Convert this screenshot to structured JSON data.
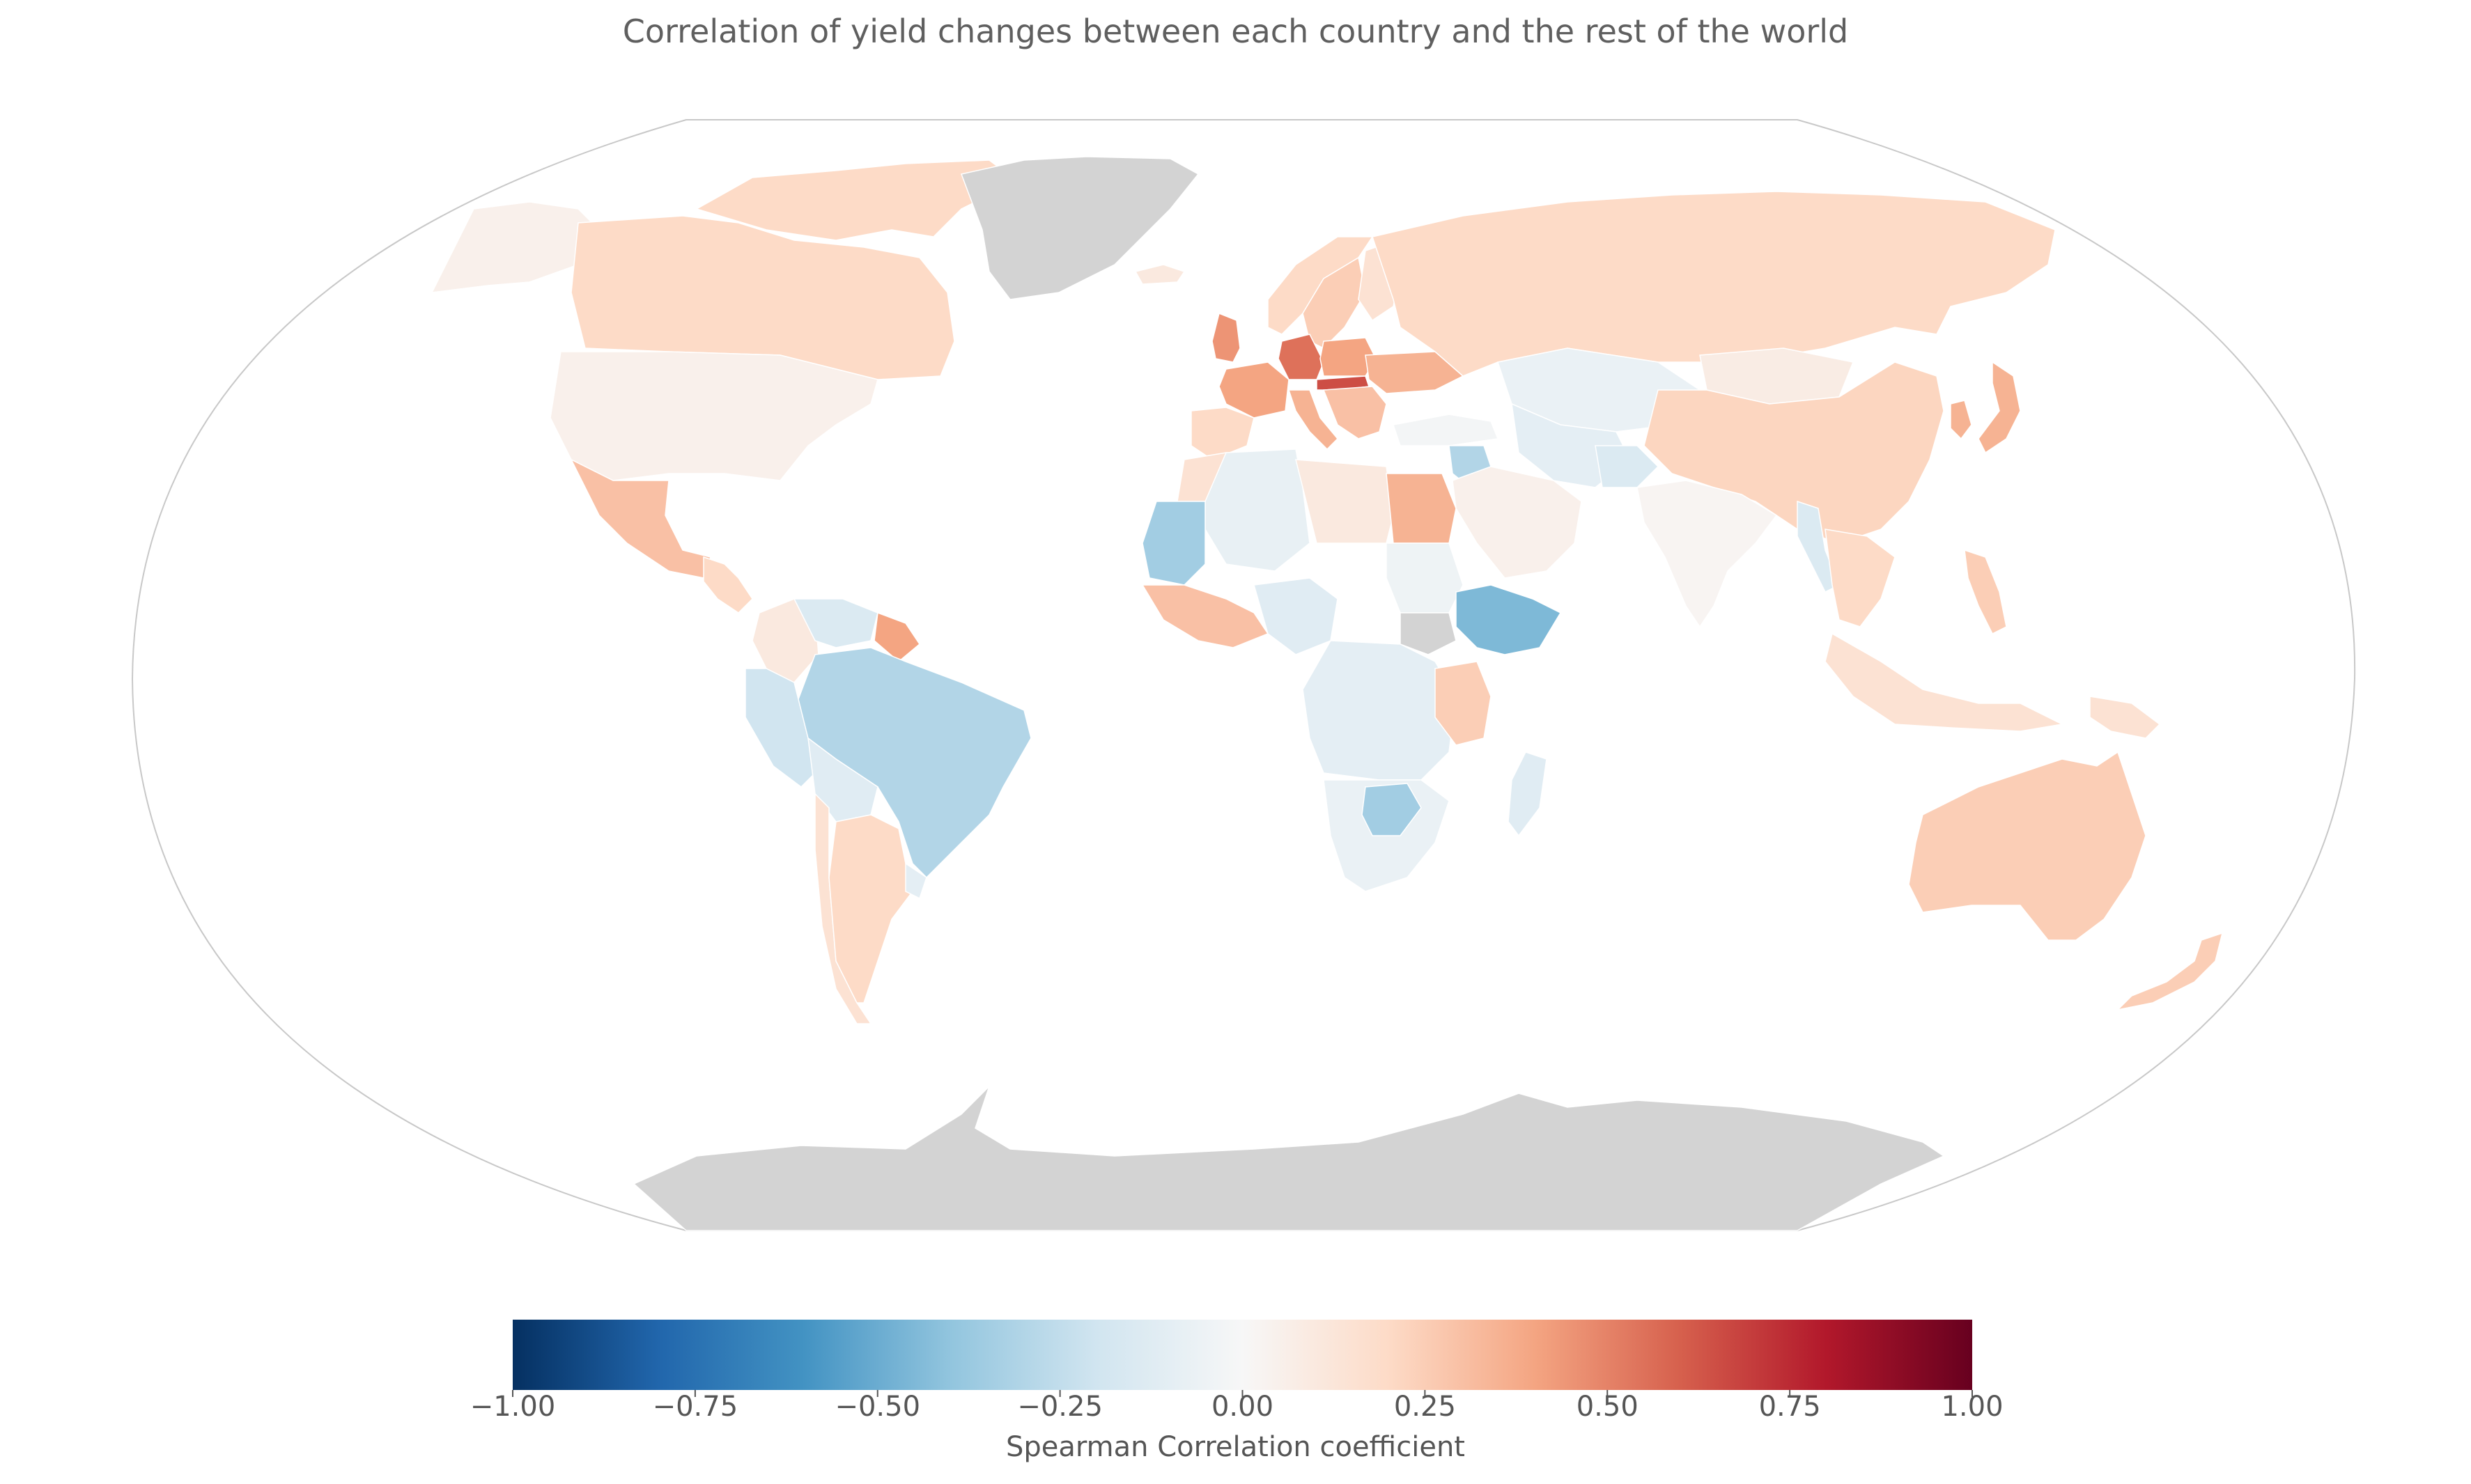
{
  "title": "Correlation of yield changes between each country and the rest of the world",
  "colorbar": {
    "label": "Spearman Correlation coefficient",
    "ticks": [
      "−1.00",
      "−0.75",
      "−0.50",
      "−0.25",
      "0.00",
      "0.25",
      "0.50",
      "0.75",
      "1.00"
    ],
    "range": [
      -1.0,
      1.0
    ],
    "colormap": "RdBu_r",
    "colors": [
      "#053061",
      "#2166ac",
      "#4393c3",
      "#92c5de",
      "#d1e5f0",
      "#f7f7f7",
      "#fddbc7",
      "#f4a582",
      "#d6604d",
      "#b2182b",
      "#67001f"
    ]
  },
  "no_data_color": "#d3d3d3",
  "projection": "Winkel Tripel",
  "regions": [
    {
      "name": "Greenland",
      "value": null
    },
    {
      "name": "Antarctica",
      "value": null
    },
    {
      "name": "Alaska",
      "value": 0.05
    },
    {
      "name": "Canada",
      "value": 0.2
    },
    {
      "name": "Canadian Arctic Archipelago",
      "value": 0.2
    },
    {
      "name": "United States",
      "value": 0.05
    },
    {
      "name": "Mexico",
      "value": 0.3
    },
    {
      "name": "Central America",
      "value": 0.2
    },
    {
      "name": "Colombia",
      "value": 0.1
    },
    {
      "name": "Venezuela",
      "value": -0.15
    },
    {
      "name": "Guyana",
      "value": 0.4
    },
    {
      "name": "Brazil",
      "value": -0.3
    },
    {
      "name": "Peru",
      "value": -0.2
    },
    {
      "name": "Bolivia",
      "value": -0.12
    },
    {
      "name": "Argentina",
      "value": 0.2
    },
    {
      "name": "Chile",
      "value": 0.15
    },
    {
      "name": "Uruguay",
      "value": -0.1
    },
    {
      "name": "Iceland",
      "value": 0.1
    },
    {
      "name": "Norway",
      "value": 0.2
    },
    {
      "name": "Sweden",
      "value": 0.25
    },
    {
      "name": "Finland",
      "value": 0.15
    },
    {
      "name": "United Kingdom",
      "value": 0.45
    },
    {
      "name": "France",
      "value": 0.4
    },
    {
      "name": "Iberia",
      "value": 0.2
    },
    {
      "name": "Italy",
      "value": 0.35
    },
    {
      "name": "Germany",
      "value": 0.55
    },
    {
      "name": "Poland",
      "value": 0.4
    },
    {
      "name": "Hungary",
      "value": 0.65
    },
    {
      "name": "Ukraine",
      "value": 0.35
    },
    {
      "name": "Balkans",
      "value": 0.3
    },
    {
      "name": "Turkey",
      "value": -0.02
    },
    {
      "name": "Russia",
      "value": 0.2
    },
    {
      "name": "Kazakhstan",
      "value": -0.07
    },
    {
      "name": "Central Asia",
      "value": -0.1
    },
    {
      "name": "Mongolia",
      "value": 0.08
    },
    {
      "name": "China",
      "value": 0.22
    },
    {
      "name": "Korea",
      "value": 0.35
    },
    {
      "name": "Japan",
      "value": 0.35
    },
    {
      "name": "Middle East",
      "value": 0.05
    },
    {
      "name": "Syria/Iraq",
      "value": -0.3
    },
    {
      "name": "Afghanistan",
      "value": -0.15
    },
    {
      "name": "India",
      "value": 0.02
    },
    {
      "name": "Myanmar",
      "value": -0.15
    },
    {
      "name": "Southeast Asia",
      "value": 0.2
    },
    {
      "name": "Indonesia",
      "value": 0.15
    },
    {
      "name": "Papua New Guinea",
      "value": 0.15
    },
    {
      "name": "Philippines",
      "value": 0.25
    },
    {
      "name": "Australia",
      "value": 0.25
    },
    {
      "name": "New Zealand",
      "value": 0.25
    },
    {
      "name": "Morocco",
      "value": 0.15
    },
    {
      "name": "Algeria/Sahara",
      "value": -0.08
    },
    {
      "name": "Mauritania/Senegal",
      "value": -0.35
    },
    {
      "name": "West Africa coast",
      "value": 0.3
    },
    {
      "name": "Nigeria",
      "value": -0.12
    },
    {
      "name": "Libya",
      "value": 0.1
    },
    {
      "name": "Egypt",
      "value": 0.35
    },
    {
      "name": "Sudan",
      "value": -0.05
    },
    {
      "name": "South Sudan",
      "value": null
    },
    {
      "name": "Ethiopia",
      "value": -0.45
    },
    {
      "name": "Central Africa",
      "value": -0.1
    },
    {
      "name": "Tanzania",
      "value": 0.25
    },
    {
      "name": "Southern Africa",
      "value": -0.07
    },
    {
      "name": "Botswana/Zimbabwe",
      "value": -0.35
    },
    {
      "name": "Madagascar",
      "value": -0.12
    }
  ]
}
